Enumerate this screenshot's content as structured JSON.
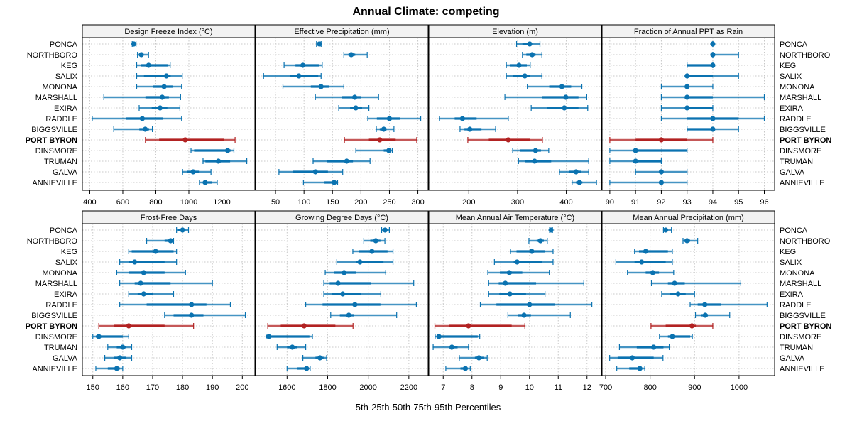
{
  "chart_data": {
    "type": "dot-interval",
    "title": "Annual Climate: competing",
    "xlabel": "5th-25th-50th-75th-95th Percentiles",
    "highlight": "PORT BYRON",
    "colors": {
      "default": "#0a72b0",
      "highlight": "#b22222",
      "grid": "#c8c8c8",
      "strip": "#f2f2f2"
    },
    "rows": [
      "PONCA",
      "NORTHBORO",
      "KEG",
      "SALIX",
      "MONONA",
      "MARSHALL",
      "EXIRA",
      "RADDLE",
      "BIGGSVILLE",
      "PORT BYRON",
      "DINSMORE",
      "TRUMAN",
      "GALVA",
      "ANNIEVILLE"
    ],
    "percentiles": [
      "5th",
      "25th",
      "50th",
      "75th",
      "95th"
    ],
    "panels": [
      {
        "title": "Design Freeze Index (°C)",
        "xlim": [
          355,
          1400
        ],
        "ticks": [
          400,
          600,
          800,
          1000,
          1200
        ],
        "series": [
          [
            657,
            662,
            667,
            672,
            680
          ],
          [
            689,
            700,
            712,
            725,
            756
          ],
          [
            684,
            708,
            756,
            871,
            887
          ],
          [
            684,
            728,
            864,
            890,
            960
          ],
          [
            684,
            781,
            850,
            901,
            956
          ],
          [
            485,
            737,
            839,
            879,
            950
          ],
          [
            699,
            775,
            826,
            870,
            946
          ],
          [
            415,
            620,
            718,
            842,
            956
          ],
          [
            545,
            700,
            736,
            759,
            779
          ],
          [
            737,
            820,
            978,
            1211,
            1280
          ],
          [
            1013,
            1032,
            1235,
            1253,
            1273
          ],
          [
            1086,
            1100,
            1179,
            1250,
            1351
          ],
          [
            962,
            988,
            1026,
            1061,
            1134
          ],
          [
            1064,
            1085,
            1099,
            1140,
            1172
          ]
        ]
      },
      {
        "title": "Effective Precipitation (mm)",
        "xlim": [
          15,
          318
        ],
        "ticks": [
          50,
          100,
          150,
          200,
          250,
          300
        ],
        "series": [
          [
            122,
            124,
            127,
            129,
            130
          ],
          [
            170,
            178,
            183,
            190,
            211
          ],
          [
            65,
            85,
            98,
            127,
            132
          ],
          [
            29,
            75,
            91,
            125,
            130
          ],
          [
            63,
            112,
            130,
            144,
            170
          ],
          [
            120,
            166,
            189,
            200,
            231
          ],
          [
            161,
            181,
            191,
            202,
            214
          ],
          [
            212,
            228,
            250,
            269,
            305
          ],
          [
            227,
            233,
            240,
            245,
            258
          ],
          [
            171,
            214,
            233,
            261,
            298
          ],
          [
            191,
            240,
            249,
            253,
            255
          ],
          [
            116,
            140,
            175,
            186,
            216
          ],
          [
            56,
            81,
            120,
            142,
            168
          ],
          [
            99,
            136,
            153,
            157,
            159
          ]
        ]
      },
      {
        "title": "Elevation (m)",
        "xlim": [
          118,
          472
        ],
        "ticks": [
          200,
          300,
          400
        ],
        "series": [
          [
            298,
            310,
            325,
            330,
            346
          ],
          [
            310,
            318,
            330,
            337,
            350
          ],
          [
            277,
            285,
            303,
            319,
            326
          ],
          [
            277,
            291,
            315,
            325,
            350
          ],
          [
            320,
            365,
            391,
            410,
            432
          ],
          [
            274,
            351,
            399,
            425,
            442
          ],
          [
            328,
            361,
            396,
            425,
            444
          ],
          [
            140,
            171,
            187,
            216,
            281
          ],
          [
            182,
            191,
            202,
            226,
            255
          ],
          [
            198,
            241,
            281,
            325,
            351
          ],
          [
            290,
            305,
            337,
            348,
            364
          ],
          [
            302,
            315,
            335,
            369,
            446
          ],
          [
            386,
            405,
            420,
            431,
            446
          ],
          [
            412,
            420,
            427,
            433,
            462
          ]
        ]
      },
      {
        "title": "Fraction of Annual PPT as Rain",
        "xlim": [
          89.7,
          96.4
        ],
        "ticks": [
          90,
          91,
          92,
          93,
          94,
          95,
          96
        ],
        "series": [
          [
            94,
            94,
            94,
            94,
            94
          ],
          [
            94,
            94,
            94,
            94,
            95
          ],
          [
            93,
            93,
            94,
            94,
            94
          ],
          [
            93,
            93,
            93,
            94,
            95
          ],
          [
            92,
            93,
            93,
            93,
            94
          ],
          [
            92,
            93,
            93,
            94,
            96
          ],
          [
            92,
            93,
            93,
            94,
            94
          ],
          [
            92,
            93,
            94,
            95,
            96
          ],
          [
            93,
            93,
            94,
            94,
            95
          ],
          [
            90,
            91,
            92,
            93,
            94
          ],
          [
            90,
            91,
            91,
            93,
            93
          ],
          [
            90,
            91,
            91,
            92,
            92
          ],
          [
            91,
            92,
            92,
            92,
            93
          ],
          [
            90,
            92,
            92,
            92,
            93
          ]
        ]
      },
      {
        "title": "Frost-Free Days",
        "xlim": [
          146.5,
          204.2
        ],
        "ticks": [
          150,
          160,
          170,
          180,
          190,
          200
        ],
        "series": [
          [
            178,
            178.5,
            180,
            181,
            182
          ],
          [
            168,
            174,
            176,
            177,
            177
          ],
          [
            162,
            163,
            171,
            177,
            178
          ],
          [
            159,
            162,
            164,
            174,
            178
          ],
          [
            158,
            162,
            167,
            174,
            181
          ],
          [
            159,
            164,
            166,
            176,
            190
          ],
          [
            162,
            165,
            167,
            170,
            177
          ],
          [
            159,
            168,
            183,
            188,
            196
          ],
          [
            174,
            177,
            183,
            187,
            201
          ],
          [
            152,
            157,
            162,
            174,
            183.7
          ],
          [
            150,
            151,
            152,
            160,
            162
          ],
          [
            155,
            158,
            160,
            161,
            163
          ],
          [
            154,
            157,
            159,
            161,
            163
          ],
          [
            151,
            155,
            158,
            159,
            160
          ]
        ]
      },
      {
        "title": "Growing Degree Days (°C)",
        "xlim": [
          1445,
          2295
        ],
        "ticks": [
          1600,
          1800,
          2000,
          2200
        ],
        "series": [
          [
            2066,
            2070,
            2083,
            2090,
            2104
          ],
          [
            1978,
            2010,
            2037,
            2060,
            2082
          ],
          [
            1924,
            1955,
            2018,
            2095,
            2122
          ],
          [
            1845,
            1940,
            1959,
            2075,
            2122
          ],
          [
            1788,
            1830,
            1881,
            1940,
            2086
          ],
          [
            1781,
            1810,
            1851,
            2015,
            2224
          ],
          [
            1781,
            1820,
            1874,
            1965,
            2062
          ],
          [
            1692,
            1775,
            1934,
            2060,
            2237
          ],
          [
            1815,
            1860,
            1904,
            1930,
            2140
          ],
          [
            1505,
            1569,
            1684,
            1838,
            1925
          ],
          [
            1497,
            1500,
            1510,
            1710,
            1725
          ],
          [
            1551,
            1600,
            1626,
            1650,
            1692
          ],
          [
            1678,
            1740,
            1762,
            1780,
            1795
          ],
          [
            1600,
            1650,
            1696,
            1705,
            1714
          ]
        ]
      },
      {
        "title": "Mean Annual Air Temperature (°C)",
        "xlim": [
          6.5,
          12.5
        ],
        "ticks": [
          7,
          8,
          9,
          10,
          11,
          12
        ],
        "series": [
          [
            10.7,
            10.72,
            10.75,
            10.78,
            10.8
          ],
          [
            9.98,
            10.25,
            10.38,
            10.5,
            10.62
          ],
          [
            9.34,
            9.55,
            10.08,
            10.55,
            10.82
          ],
          [
            8.78,
            9.45,
            9.57,
            10.45,
            10.82
          ],
          [
            8.55,
            8.97,
            9.3,
            9.75,
            10.69
          ],
          [
            8.58,
            8.93,
            9.16,
            10.23,
            11.89
          ],
          [
            8.58,
            8.95,
            9.32,
            9.88,
            10.54
          ],
          [
            8.29,
            8.85,
            10.0,
            10.88,
            12.17
          ],
          [
            9.25,
            9.6,
            9.81,
            10.05,
            11.42
          ],
          [
            6.71,
            7.21,
            7.88,
            9.38,
            9.84
          ],
          [
            6.72,
            6.8,
            6.85,
            8.2,
            8.27
          ],
          [
            6.65,
            7.2,
            7.3,
            7.5,
            7.88
          ],
          [
            7.56,
            8.1,
            8.24,
            8.4,
            8.53
          ],
          [
            7.09,
            7.6,
            7.77,
            7.85,
            7.94
          ]
        ]
      },
      {
        "title": "Mean Annual Precipitation (mm)",
        "xlim": [
          692,
          1080
        ],
        "ticks": [
          700,
          800,
          900,
          1000
        ],
        "series": [
          [
            830,
            832,
            835,
            838,
            848
          ],
          [
            874,
            876,
            883,
            890,
            907
          ],
          [
            765,
            775,
            790,
            840,
            850
          ],
          [
            723,
            765,
            781,
            835,
            850
          ],
          [
            749,
            790,
            806,
            820,
            853
          ],
          [
            803,
            840,
            855,
            878,
            1004
          ],
          [
            826,
            845,
            863,
            880,
            900
          ],
          [
            890,
            907,
            923,
            960,
            1063
          ],
          [
            902,
            915,
            924,
            930,
            979
          ],
          [
            802,
            835,
            894,
            903,
            941
          ],
          [
            821,
            840,
            850,
            890,
            895
          ],
          [
            731,
            770,
            808,
            830,
            843
          ],
          [
            709,
            727,
            760,
            808,
            829
          ],
          [
            725,
            753,
            777,
            780,
            788
          ]
        ]
      }
    ]
  }
}
